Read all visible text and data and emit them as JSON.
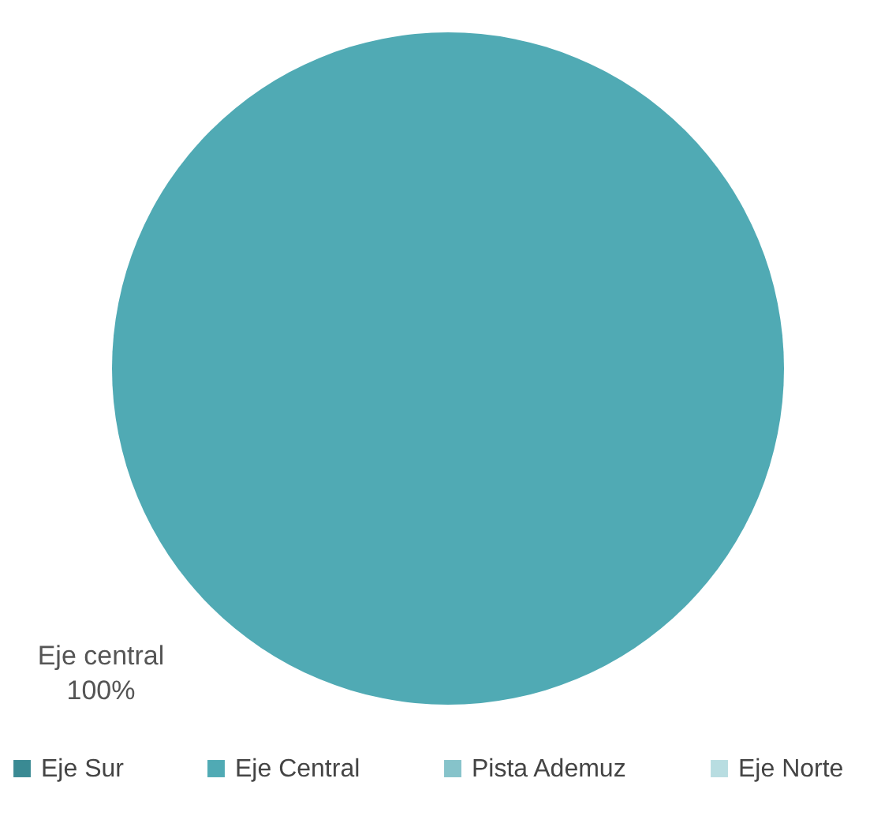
{
  "chart_data": {
    "type": "pie",
    "categories": [
      "Eje Sur",
      "Eje Central",
      "Pista Ademuz",
      "Eje Norte"
    ],
    "values": [
      0,
      100,
      0,
      0
    ],
    "colors": [
      "#3a8a93",
      "#50aab4",
      "#86c3ca",
      "#b8dde1"
    ],
    "value_labels": [
      null,
      "Eje central\n100%",
      null,
      null
    ],
    "legend": "bottom"
  }
}
